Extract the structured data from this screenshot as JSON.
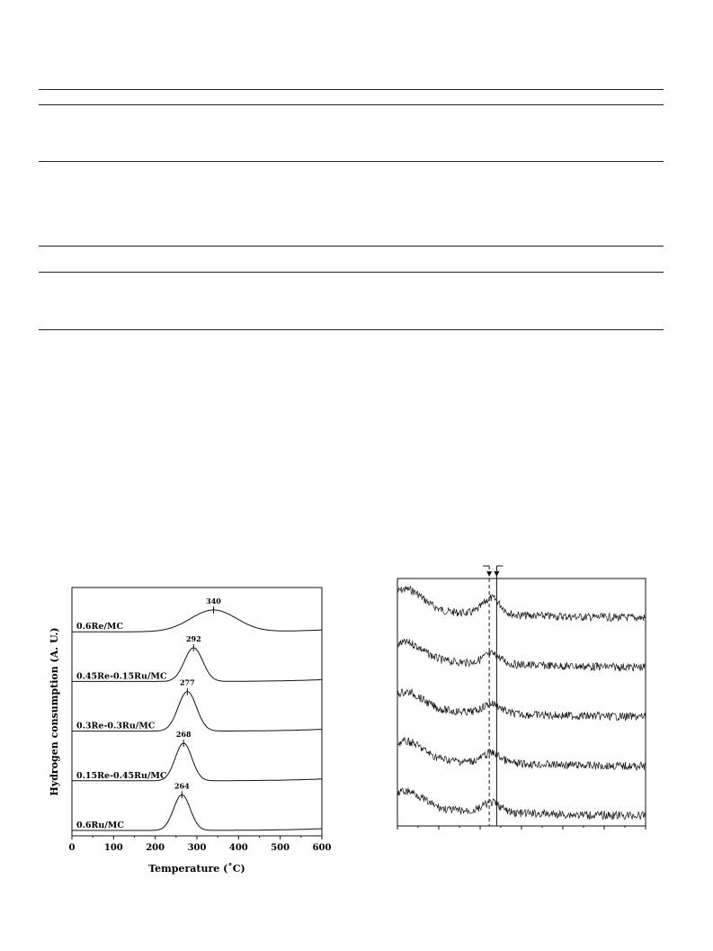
{
  "table_rules": [
    "top",
    "header",
    "section",
    "group",
    "subheader",
    "bottom"
  ],
  "chart_data": [
    {
      "type": "line",
      "title": "",
      "xlabel": "Temperature (˚C)",
      "ylabel": "Hydrogen consumption (A. U.)",
      "xlim": [
        0,
        600
      ],
      "xticks": [
        0,
        100,
        200,
        300,
        400,
        500,
        600
      ],
      "xtick_labels": [
        "0",
        "100",
        "200",
        "300",
        "400",
        "500",
        "600"
      ],
      "yticks": "none",
      "grid": false,
      "series": [
        {
          "name": "0.6Re/MC",
          "peak_temperature": 340,
          "peak_label": "340",
          "peak_width": 55,
          "peak_height": 0.55
        },
        {
          "name": "0.45Re-0.15Ru/MC",
          "peak_temperature": 292,
          "peak_label": "292",
          "peak_width": 22,
          "peak_height": 0.85
        },
        {
          "name": "0.3Re-0.3Ru/MC",
          "peak_temperature": 277,
          "peak_label": "277",
          "peak_width": 22,
          "peak_height": 1.0
        },
        {
          "name": "0.15Re-0.45Ru/MC",
          "peak_temperature": 268,
          "peak_label": "268",
          "peak_width": 20,
          "peak_height": 0.95
        },
        {
          "name": "0.6Ru/MC",
          "peak_temperature": 264,
          "peak_label": "264",
          "peak_width": 20,
          "peak_height": 0.9
        }
      ]
    },
    {
      "type": "line",
      "title": "",
      "xlabel": "",
      "ylabel": "",
      "noisy": true,
      "reference_lines": [
        {
          "style": "dashed",
          "relative_x": 0.37
        },
        {
          "style": "solid",
          "relative_x": 0.4
        }
      ],
      "series_count": 5,
      "grid": false
    }
  ]
}
